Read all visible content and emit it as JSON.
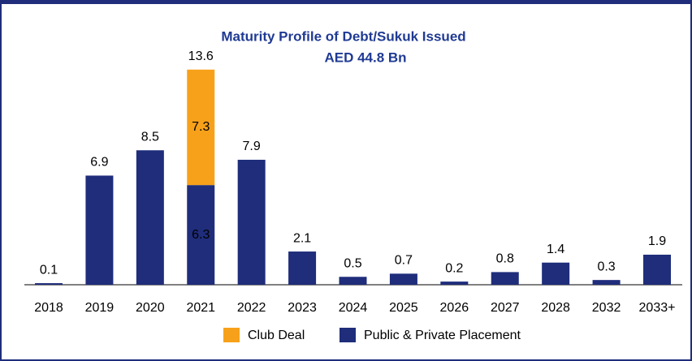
{
  "chart_data": {
    "type": "stacked_bar",
    "title": "Maturity Profile of Debt/Sukuk Issued",
    "subtitle": "AED 44.8 Bn",
    "categories": [
      "2018",
      "2019",
      "2020",
      "2021",
      "2022",
      "2023",
      "2024",
      "2025",
      "2026",
      "2027",
      "2028",
      "2032",
      "2033+"
    ],
    "series": [
      {
        "name": "Public & Private Placement",
        "color": "#1f2d7b",
        "values": [
          0.1,
          6.9,
          8.5,
          6.3,
          7.9,
          2.1,
          0.5,
          0.7,
          0.2,
          0.8,
          1.4,
          0.3,
          1.9
        ]
      },
      {
        "name": "Club Deal",
        "color": "#f7a11a",
        "values": [
          null,
          null,
          null,
          7.3,
          null,
          null,
          null,
          null,
          null,
          null,
          null,
          null,
          null
        ]
      }
    ],
    "annotations": [
      {
        "category": "2021",
        "text": "13.6"
      }
    ],
    "ylim": [
      0,
      14
    ],
    "legend": "bottom"
  }
}
